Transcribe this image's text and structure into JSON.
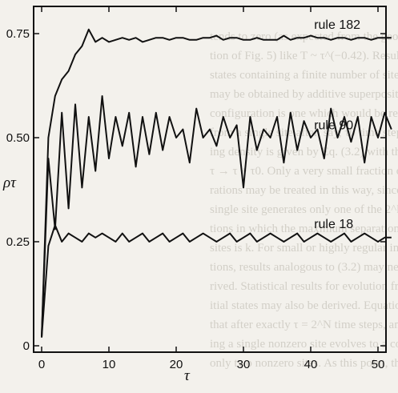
{
  "chart_data": {
    "type": "line",
    "title": "",
    "xlabel": "τ",
    "ylabel": "ρτ",
    "xlim": [
      0,
      52
    ],
    "ylim": [
      0,
      0.8
    ],
    "xticks": [
      0,
      10,
      20,
      30,
      40,
      50
    ],
    "yticks": [
      0,
      0.25,
      0.5,
      0.75
    ],
    "ytick_labels": [
      "0",
      "0.25",
      "0.50",
      "0.75"
    ],
    "grid": false,
    "series": [
      {
        "name": "rule 182",
        "x": [
          0,
          1,
          2,
          3,
          4,
          5,
          6,
          7,
          8,
          9,
          10,
          11,
          12,
          13,
          14,
          15,
          16,
          17,
          18,
          19,
          20,
          21,
          22,
          23,
          24,
          25,
          26,
          27,
          28,
          29,
          30,
          31,
          32,
          33,
          34,
          35,
          36,
          37,
          38,
          39,
          40,
          41,
          42,
          43,
          44,
          45,
          46,
          47,
          48,
          49,
          50,
          51,
          52
        ],
        "values": [
          0.02,
          0.5,
          0.6,
          0.64,
          0.66,
          0.7,
          0.72,
          0.76,
          0.73,
          0.74,
          0.73,
          0.735,
          0.74,
          0.735,
          0.74,
          0.73,
          0.735,
          0.74,
          0.74,
          0.735,
          0.74,
          0.74,
          0.735,
          0.735,
          0.74,
          0.74,
          0.745,
          0.735,
          0.74,
          0.74,
          0.735,
          0.735,
          0.74,
          0.735,
          0.735,
          0.735,
          0.745,
          0.735,
          0.74,
          0.74,
          0.745,
          0.74,
          0.74,
          0.735,
          0.74,
          0.74,
          0.735,
          0.74,
          0.74,
          0.735,
          0.74,
          0.74,
          0.74
        ]
      },
      {
        "name": "rule 90",
        "x": [
          0,
          1,
          2,
          3,
          4,
          5,
          6,
          7,
          8,
          9,
          10,
          11,
          12,
          13,
          14,
          15,
          16,
          17,
          18,
          19,
          20,
          21,
          22,
          23,
          24,
          25,
          26,
          27,
          28,
          29,
          30,
          31,
          32,
          33,
          34,
          35,
          36,
          37,
          38,
          39,
          40,
          41,
          42,
          43,
          44,
          45,
          46,
          47,
          48,
          49,
          50,
          51,
          52
        ],
        "values": [
          0.02,
          0.45,
          0.28,
          0.56,
          0.33,
          0.58,
          0.38,
          0.55,
          0.42,
          0.6,
          0.45,
          0.55,
          0.48,
          0.56,
          0.43,
          0.55,
          0.46,
          0.56,
          0.47,
          0.55,
          0.5,
          0.52,
          0.44,
          0.57,
          0.5,
          0.52,
          0.48,
          0.55,
          0.5,
          0.53,
          0.38,
          0.55,
          0.47,
          0.52,
          0.5,
          0.55,
          0.44,
          0.56,
          0.47,
          0.54,
          0.5,
          0.52,
          0.45,
          0.57,
          0.5,
          0.55,
          0.49,
          0.55,
          0.44,
          0.55,
          0.5,
          0.56,
          0.52
        ]
      },
      {
        "name": "rule 18",
        "x": [
          0,
          1,
          2,
          3,
          4,
          5,
          6,
          7,
          8,
          9,
          10,
          11,
          12,
          13,
          14,
          15,
          16,
          17,
          18,
          19,
          20,
          21,
          22,
          23,
          24,
          25,
          26,
          27,
          28,
          29,
          30,
          31,
          32,
          33,
          34,
          35,
          36,
          37,
          38,
          39,
          40,
          41,
          42,
          43,
          44,
          45,
          46,
          47,
          48,
          49,
          50,
          51,
          52
        ],
        "values": [
          0.02,
          0.24,
          0.29,
          0.25,
          0.27,
          0.26,
          0.25,
          0.27,
          0.26,
          0.27,
          0.26,
          0.25,
          0.27,
          0.25,
          0.26,
          0.27,
          0.25,
          0.26,
          0.27,
          0.25,
          0.26,
          0.27,
          0.25,
          0.26,
          0.27,
          0.26,
          0.25,
          0.26,
          0.27,
          0.25,
          0.26,
          0.27,
          0.25,
          0.26,
          0.27,
          0.26,
          0.25,
          0.26,
          0.27,
          0.25,
          0.26,
          0.27,
          0.26,
          0.25,
          0.26,
          0.27,
          0.25,
          0.26,
          0.27,
          0.26,
          0.25,
          0.26,
          0.26
        ]
      }
    ]
  }
}
